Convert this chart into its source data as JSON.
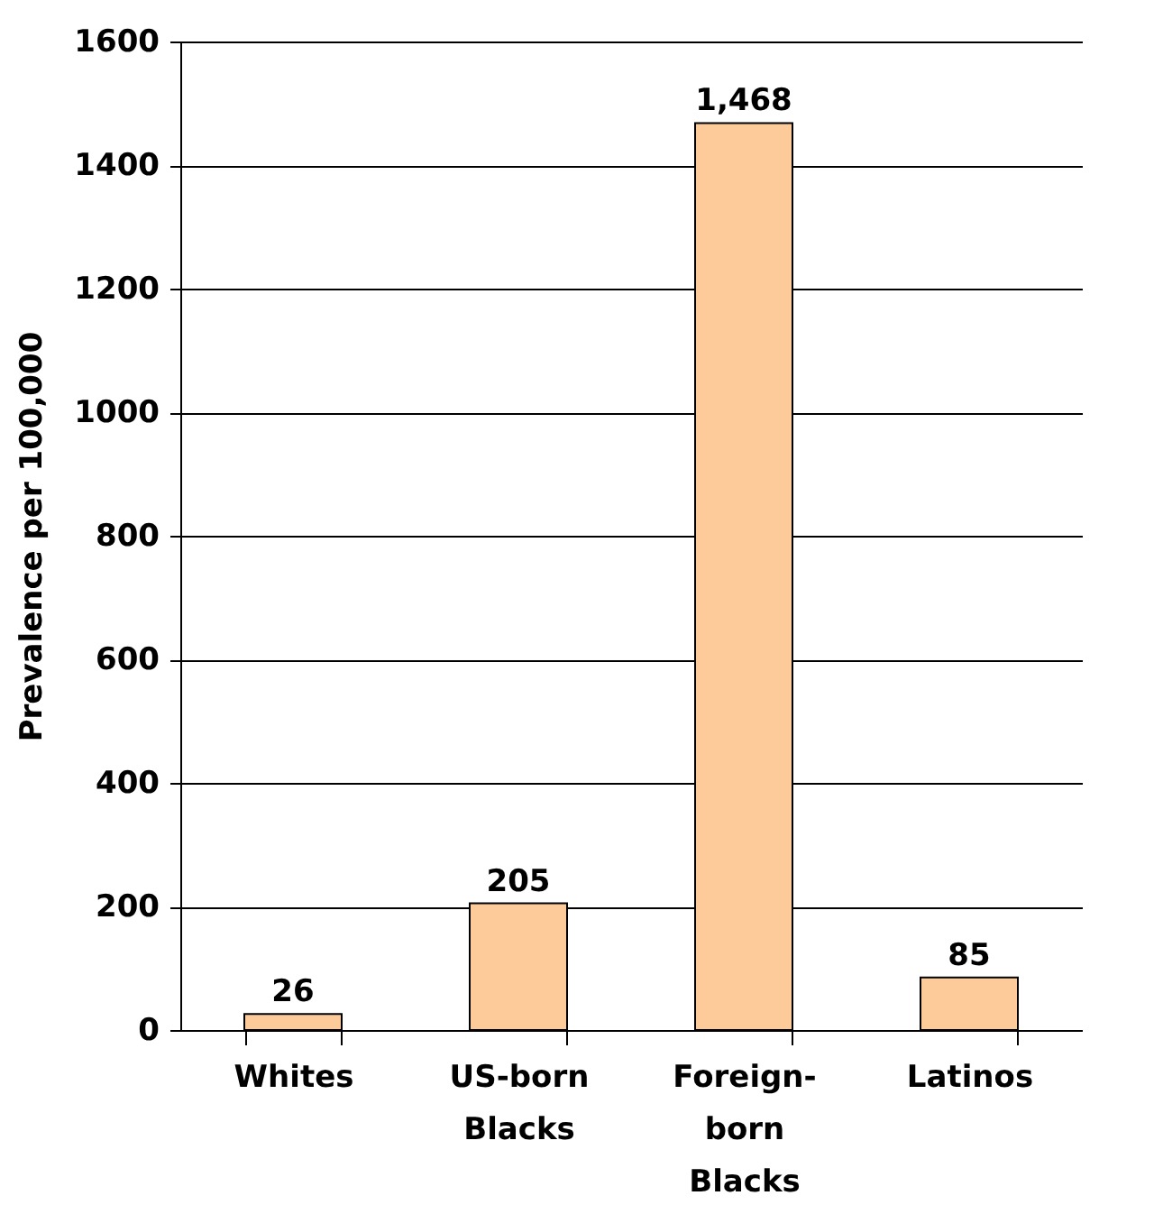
{
  "chart_data": {
    "type": "bar",
    "ylabel": "Prevalence per 100,000",
    "categories": [
      "Whites",
      "US-born Blacks",
      "Foreign-born Blacks",
      "Latinos"
    ],
    "values": [
      26,
      205,
      1468,
      85
    ],
    "color": "#fdcb99",
    "value_labels": [
      "26",
      "205",
      "1,468",
      "85"
    ],
    "ylim": [
      0,
      1600
    ],
    "yticks": [
      0,
      200,
      400,
      600,
      800,
      1000,
      1200,
      1400,
      1600
    ],
    "grid": "y"
  }
}
